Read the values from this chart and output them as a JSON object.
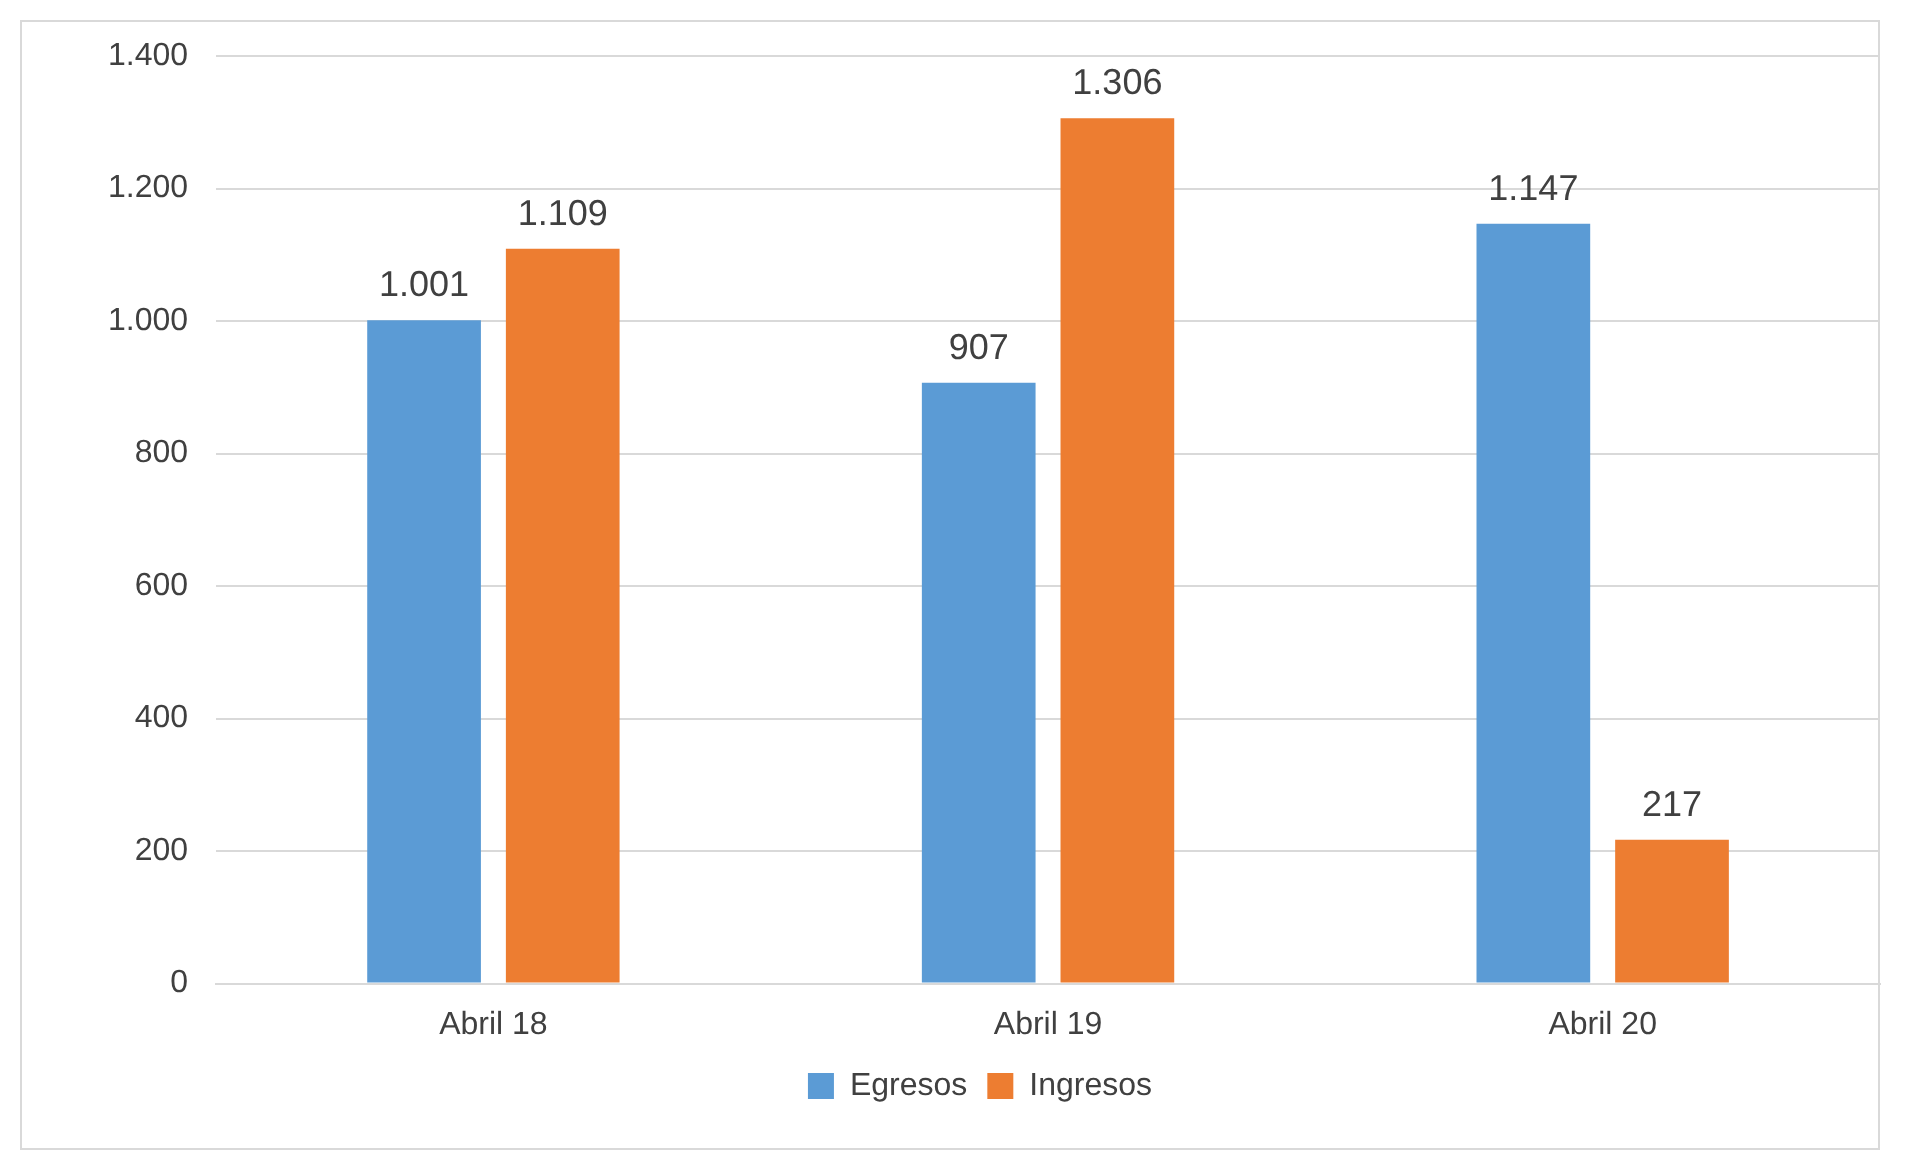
{
  "chart_data": {
    "type": "bar",
    "categories": [
      "Abril 18",
      "Abril 19",
      "Abril 20"
    ],
    "series": [
      {
        "name": "Egresos",
        "color": "#5b9bd5",
        "values": [
          1001,
          907,
          1147
        ],
        "value_labels": [
          "1.001",
          "907",
          "1.147"
        ]
      },
      {
        "name": "Ingresos",
        "color": "#ed7d31",
        "values": [
          1109,
          1306,
          217
        ],
        "value_labels": [
          "1.109",
          "1.306",
          "217"
        ]
      }
    ],
    "ylim": [
      0,
      1400
    ],
    "yticks": [
      0,
      200,
      400,
      600,
      800,
      {
        "value": 1000,
        "label": "1.000"
      },
      {
        "value": 1200,
        "label": "1.200"
      },
      {
        "value": 1400,
        "label": "1.400"
      }
    ],
    "grid": "y",
    "legend": "bottom"
  }
}
